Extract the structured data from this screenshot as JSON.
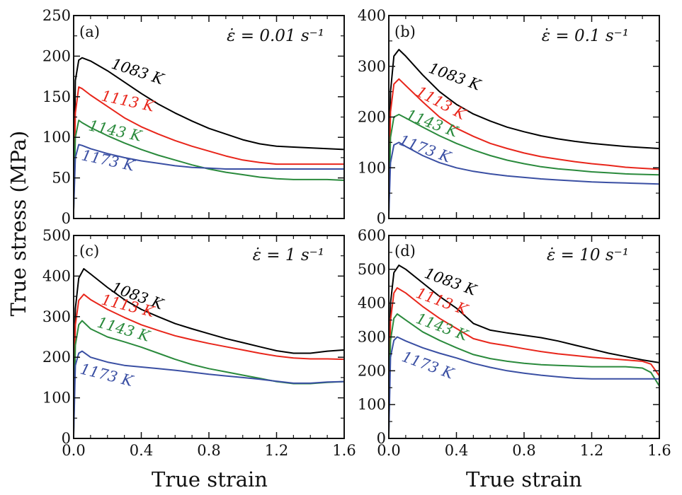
{
  "figure": {
    "y_title": "True stress (MPa)",
    "x_title": "True strain"
  },
  "colors": {
    "1083 K": "#000000",
    "1113 K": "#e8261b",
    "1143 K": "#2a8a3c",
    "1173 K": "#3a4fa3"
  },
  "chart_data": [
    {
      "type": "line",
      "panel": "(a)",
      "rate_label": "ε̇ = 0.01 s⁻¹",
      "xlabel": "",
      "ylabel": "True stress (MPa)",
      "xlim": [
        0,
        1.6
      ],
      "ylim": [
        0,
        250
      ],
      "yticks": [
        "0",
        "50",
        "100",
        "150",
        "200",
        "250"
      ],
      "xticks": [],
      "series": [
        {
          "name": "1083 K",
          "label": "1083 K",
          "x": [
            0,
            0.01,
            0.03,
            0.05,
            0.1,
            0.2,
            0.3,
            0.4,
            0.5,
            0.6,
            0.7,
            0.8,
            0.9,
            1.0,
            1.1,
            1.2,
            1.3,
            1.4,
            1.5,
            1.6
          ],
          "y": [
            20,
            170,
            195,
            198,
            194,
            182,
            168,
            154,
            141,
            130,
            120,
            111,
            104,
            97,
            92,
            89,
            88,
            87,
            86,
            85
          ]
        },
        {
          "name": "1113 K",
          "label": "1113 K",
          "x": [
            0,
            0.01,
            0.03,
            0.05,
            0.1,
            0.2,
            0.3,
            0.4,
            0.5,
            0.6,
            0.7,
            0.8,
            0.9,
            1.0,
            1.1,
            1.2,
            1.3,
            1.4,
            1.5,
            1.6
          ],
          "y": [
            10,
            130,
            162,
            160,
            152,
            138,
            124,
            113,
            104,
            96,
            89,
            83,
            77,
            72,
            69,
            67,
            67,
            67,
            67,
            67
          ]
        },
        {
          "name": "1143 K",
          "label": "1143 K",
          "x": [
            0,
            0.01,
            0.03,
            0.05,
            0.1,
            0.2,
            0.3,
            0.4,
            0.5,
            0.6,
            0.7,
            0.8,
            0.9,
            1.0,
            1.1,
            1.2,
            1.3,
            1.4,
            1.5,
            1.6
          ],
          "y": [
            10,
            100,
            121,
            118,
            112,
            102,
            93,
            85,
            78,
            72,
            66,
            61,
            57,
            54,
            51,
            49,
            48,
            48,
            48,
            47
          ]
        },
        {
          "name": "1173 K",
          "label": "1173 K",
          "x": [
            0,
            0.01,
            0.03,
            0.05,
            0.1,
            0.2,
            0.3,
            0.4,
            0.5,
            0.6,
            0.7,
            0.8,
            0.9,
            1.0,
            1.1,
            1.2,
            1.3,
            1.4,
            1.5,
            1.6
          ],
          "y": [
            10,
            75,
            91,
            90,
            86,
            80,
            75,
            71,
            68,
            65,
            63,
            62,
            61,
            61,
            61,
            61,
            61,
            61,
            61,
            61
          ]
        }
      ]
    },
    {
      "type": "line",
      "panel": "(b)",
      "rate_label": "ε̇ = 0.1 s⁻¹",
      "xlabel": "",
      "ylabel": "",
      "xlim": [
        0,
        1.6
      ],
      "ylim": [
        0,
        400
      ],
      "yticks": [
        "0",
        "100",
        "200",
        "300",
        "400"
      ],
      "xticks": [],
      "series": [
        {
          "name": "1083 K",
          "label": "1083 K",
          "x": [
            0,
            0.01,
            0.03,
            0.06,
            0.1,
            0.2,
            0.3,
            0.4,
            0.5,
            0.6,
            0.7,
            0.8,
            0.9,
            1.0,
            1.1,
            1.2,
            1.3,
            1.4,
            1.5,
            1.6
          ],
          "y": [
            20,
            250,
            320,
            333,
            320,
            283,
            250,
            225,
            206,
            192,
            180,
            171,
            163,
            157,
            152,
            148,
            145,
            142,
            140,
            138
          ]
        },
        {
          "name": "1113 K",
          "label": "1113 K",
          "x": [
            0,
            0.01,
            0.03,
            0.06,
            0.1,
            0.2,
            0.3,
            0.4,
            0.5,
            0.6,
            0.7,
            0.8,
            0.9,
            1.0,
            1.1,
            1.2,
            1.3,
            1.4,
            1.5,
            1.6
          ],
          "y": [
            15,
            210,
            265,
            275,
            262,
            230,
            200,
            178,
            162,
            148,
            138,
            129,
            122,
            117,
            112,
            108,
            105,
            101,
            99,
            97
          ]
        },
        {
          "name": "1143 K",
          "label": "1143 K",
          "x": [
            0,
            0.01,
            0.03,
            0.06,
            0.1,
            0.2,
            0.3,
            0.4,
            0.5,
            0.6,
            0.7,
            0.8,
            0.9,
            1.0,
            1.1,
            1.2,
            1.3,
            1.4,
            1.5,
            1.6
          ],
          "y": [
            10,
            160,
            200,
            205,
            198,
            180,
            163,
            148,
            135,
            124,
            115,
            108,
            102,
            98,
            95,
            92,
            90,
            88,
            87,
            86
          ]
        },
        {
          "name": "1173 K",
          "label": "1173 K",
          "x": [
            0,
            0.01,
            0.03,
            0.06,
            0.1,
            0.2,
            0.3,
            0.4,
            0.5,
            0.6,
            0.7,
            0.8,
            0.9,
            1.0,
            1.1,
            1.2,
            1.3,
            1.4,
            1.5,
            1.6
          ],
          "y": [
            5,
            110,
            145,
            150,
            142,
            124,
            110,
            100,
            93,
            88,
            84,
            81,
            78,
            76,
            74,
            72,
            71,
            70,
            69,
            68
          ]
        }
      ]
    },
    {
      "type": "line",
      "panel": "(c)",
      "rate_label": "ε̇ = 1 s⁻¹",
      "xlabel": "True strain",
      "ylabel": "",
      "xlim": [
        0,
        1.6
      ],
      "ylim": [
        0,
        500
      ],
      "yticks": [
        "0",
        "100",
        "200",
        "300",
        "400",
        "500"
      ],
      "xticks": [
        "0.0",
        "0.4",
        "0.8",
        "1.2",
        "1.6"
      ],
      "series": [
        {
          "name": "1083 K",
          "label": "1083 K",
          "x": [
            0,
            0.01,
            0.03,
            0.06,
            0.1,
            0.2,
            0.3,
            0.4,
            0.5,
            0.6,
            0.7,
            0.8,
            0.9,
            1.0,
            1.1,
            1.2,
            1.3,
            1.4,
            1.5,
            1.6
          ],
          "y": [
            20,
            320,
            395,
            418,
            405,
            372,
            342,
            318,
            300,
            283,
            270,
            258,
            246,
            236,
            226,
            216,
            210,
            210,
            215,
            218
          ]
        },
        {
          "name": "1113 K",
          "label": "1113 K",
          "x": [
            0,
            0.01,
            0.03,
            0.06,
            0.1,
            0.2,
            0.3,
            0.4,
            0.5,
            0.6,
            0.7,
            0.8,
            0.9,
            1.0,
            1.1,
            1.2,
            1.3,
            1.4,
            1.5,
            1.6
          ],
          "y": [
            15,
            280,
            340,
            355,
            342,
            318,
            298,
            280,
            266,
            253,
            243,
            234,
            226,
            218,
            210,
            203,
            198,
            196,
            196,
            195
          ]
        },
        {
          "name": "1143 K",
          "label": "1143 K",
          "x": [
            0,
            0.01,
            0.03,
            0.05,
            0.1,
            0.2,
            0.3,
            0.4,
            0.5,
            0.6,
            0.7,
            0.8,
            0.9,
            1.0,
            1.1,
            1.2,
            1.3,
            1.4,
            1.5,
            1.6
          ],
          "y": [
            10,
            230,
            280,
            290,
            270,
            250,
            238,
            225,
            210,
            195,
            182,
            172,
            164,
            156,
            148,
            140,
            135,
            135,
            138,
            140
          ]
        },
        {
          "name": "1173 K",
          "label": "1173 K",
          "x": [
            0,
            0.01,
            0.03,
            0.05,
            0.1,
            0.2,
            0.3,
            0.4,
            0.5,
            0.6,
            0.7,
            0.8,
            0.9,
            1.0,
            1.1,
            1.2,
            1.3,
            1.4,
            1.5,
            1.6
          ],
          "y": [
            5,
            180,
            210,
            215,
            200,
            188,
            180,
            176,
            172,
            168,
            163,
            158,
            154,
            150,
            146,
            141,
            136,
            136,
            139,
            140
          ]
        }
      ]
    },
    {
      "type": "line",
      "panel": "(d)",
      "rate_label": "ε̇ = 10 s⁻¹",
      "xlabel": "True strain",
      "ylabel": "",
      "xlim": [
        0,
        1.6
      ],
      "ylim": [
        0,
        600
      ],
      "yticks": [
        "0",
        "100",
        "200",
        "300",
        "400",
        "500",
        "600"
      ],
      "xticks": [
        "0.0",
        "0.4",
        "0.8",
        "1.2",
        "1.6"
      ],
      "series": [
        {
          "name": "1083 K",
          "label": "1083 K",
          "x": [
            0,
            0.01,
            0.03,
            0.06,
            0.1,
            0.2,
            0.3,
            0.4,
            0.5,
            0.6,
            0.7,
            0.8,
            0.9,
            1.0,
            1.1,
            1.2,
            1.3,
            1.4,
            1.5,
            1.6
          ],
          "y": [
            30,
            400,
            490,
            512,
            500,
            460,
            420,
            385,
            340,
            320,
            312,
            305,
            298,
            288,
            276,
            264,
            252,
            242,
            232,
            224
          ]
        },
        {
          "name": "1113 K",
          "label": "1113 K",
          "x": [
            0,
            0.01,
            0.03,
            0.05,
            0.1,
            0.2,
            0.3,
            0.4,
            0.5,
            0.6,
            0.7,
            0.8,
            0.9,
            1.0,
            1.1,
            1.2,
            1.3,
            1.4,
            1.5,
            1.55,
            1.6
          ],
          "y": [
            20,
            350,
            430,
            445,
            430,
            390,
            355,
            325,
            295,
            282,
            274,
            265,
            257,
            250,
            245,
            240,
            236,
            232,
            228,
            220,
            185
          ]
        },
        {
          "name": "1143 K",
          "label": "1143 K",
          "x": [
            0,
            0.01,
            0.03,
            0.05,
            0.1,
            0.2,
            0.3,
            0.4,
            0.5,
            0.6,
            0.7,
            0.8,
            0.9,
            1.0,
            1.1,
            1.2,
            1.3,
            1.4,
            1.5,
            1.55,
            1.6
          ],
          "y": [
            15,
            290,
            355,
            368,
            350,
            315,
            290,
            268,
            248,
            236,
            228,
            222,
            218,
            216,
            214,
            212,
            212,
            212,
            208,
            195,
            155
          ]
        },
        {
          "name": "1173 K",
          "label": "1173 K",
          "x": [
            0,
            0.01,
            0.03,
            0.05,
            0.1,
            0.2,
            0.3,
            0.4,
            0.5,
            0.6,
            0.7,
            0.8,
            0.9,
            1.0,
            1.1,
            1.2,
            1.3,
            1.4,
            1.5,
            1.6
          ],
          "y": [
            10,
            240,
            290,
            300,
            288,
            268,
            252,
            238,
            222,
            210,
            200,
            193,
            187,
            182,
            178,
            176,
            176,
            176,
            176,
            176
          ]
        }
      ]
    }
  ]
}
